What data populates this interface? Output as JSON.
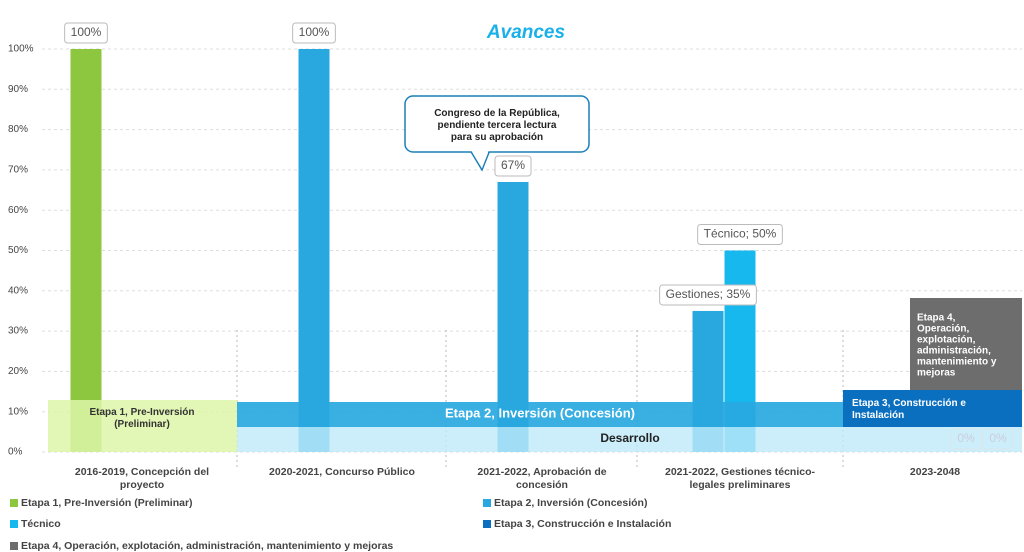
{
  "chart_data": {
    "type": "bar",
    "title": "Avances",
    "categories": [
      "2016-2019, Concepción del proyecto",
      "2020-2021, Concurso Público",
      "2021-2022, Aprobación de concesión",
      "2021-2022, Gestiones técnico-legales preliminares",
      "2023-2048"
    ],
    "series": [
      {
        "name": "Etapa 1, Pre-Inversión (Preliminar)",
        "color": "#8dc63f",
        "band_color": "#ddf5a8",
        "values": [
          100,
          null,
          null,
          null,
          null
        ],
        "value_labels": [
          "100%",
          null,
          null,
          null,
          null
        ]
      },
      {
        "name": "Etapa 2, Inversión (Concesión)",
        "color": "#29a8e0",
        "band_color": "#29a8e0",
        "values": [
          null,
          100,
          67,
          35,
          null
        ],
        "value_labels": [
          null,
          "100%",
          "67%",
          "Gestiones; 35%",
          null
        ]
      },
      {
        "name": "Técnico",
        "color": "#17b8ee",
        "values": [
          null,
          null,
          null,
          50,
          null
        ],
        "value_labels": [
          null,
          null,
          null,
          "Técnico; 50%",
          null
        ]
      },
      {
        "name": "Etapa 3, Construcción e Instalación",
        "color": "#0b6fc0",
        "band_color": "#0b6fc0",
        "values": [
          null,
          null,
          null,
          null,
          0
        ],
        "value_labels": [
          null,
          null,
          null,
          null,
          "0%"
        ]
      },
      {
        "name": "Etapa 4, Operación, explotación, administración, mantenimiento y mejoras",
        "color": "#6d6d6d",
        "band_color": "#6d6d6d",
        "values": [
          null,
          null,
          null,
          null,
          0
        ],
        "value_labels": [
          null,
          null,
          null,
          null,
          "0%"
        ]
      }
    ],
    "ylim": [
      0,
      100
    ],
    "yticks": [
      {
        "value": 0,
        "label": "0%"
      },
      {
        "value": 10,
        "label": "10%"
      },
      {
        "value": 20,
        "label": "20%"
      },
      {
        "value": 30,
        "label": "30%"
      },
      {
        "value": 40,
        "label": "40%"
      },
      {
        "value": 50,
        "label": "50%"
      },
      {
        "value": 60,
        "label": "60%"
      },
      {
        "value": 70,
        "label": "70%"
      },
      {
        "value": 80,
        "label": "80%"
      },
      {
        "value": 90,
        "label": "90%"
      },
      {
        "value": 100,
        "label": "100%"
      }
    ],
    "grid": true,
    "legend": "bottom",
    "annotations": [
      {
        "text": "Congreso de la República, pendiente tercera lectura para su aprobación"
      },
      {
        "text": "Desarrollo"
      }
    ]
  }
}
